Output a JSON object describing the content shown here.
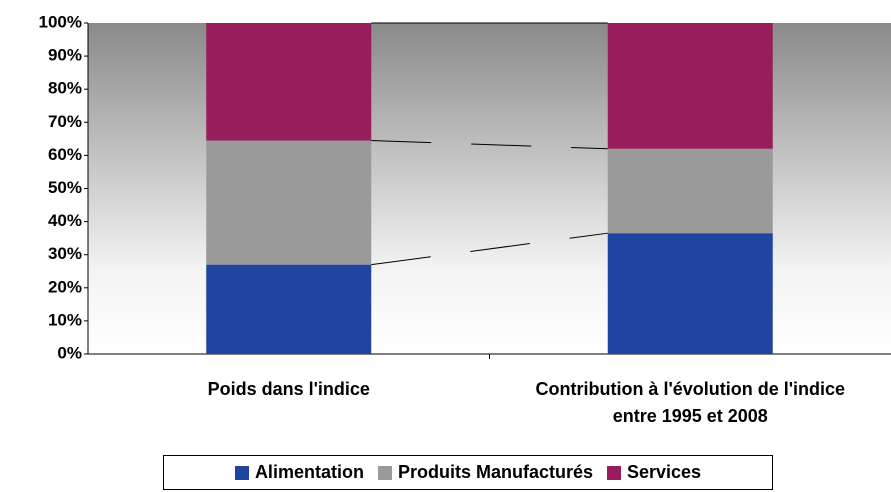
{
  "chart_data": {
    "type": "bar",
    "stacked": true,
    "categories": [
      "Poids dans l'indice",
      "Contribution à l'évolution de l'indice entre 1995 et 2008"
    ],
    "series": [
      {
        "name": "Alimentation",
        "color": "#1f45a0",
        "values": [
          27,
          36.5
        ]
      },
      {
        "name": "Produits Manufacturés",
        "color": "#9a9a9a",
        "values": [
          37.5,
          25.5
        ]
      },
      {
        "name": "Services",
        "color": "#981d5c",
        "values": [
          35.5,
          38
        ]
      }
    ],
    "ylim": [
      0,
      100
    ],
    "yticks": [
      {
        "value": 0,
        "label": "0%"
      },
      {
        "value": 10,
        "label": "10%"
      },
      {
        "value": 20,
        "label": "20%"
      },
      {
        "value": 30,
        "label": "30%"
      },
      {
        "value": 40,
        "label": "40%"
      },
      {
        "value": 50,
        "label": "50%"
      },
      {
        "value": 60,
        "label": "60%"
      },
      {
        "value": 70,
        "label": "70%"
      },
      {
        "value": 80,
        "label": "80%"
      },
      {
        "value": 90,
        "label": "90%"
      },
      {
        "value": 100,
        "label": "100%"
      }
    ],
    "legend": "bottom"
  }
}
